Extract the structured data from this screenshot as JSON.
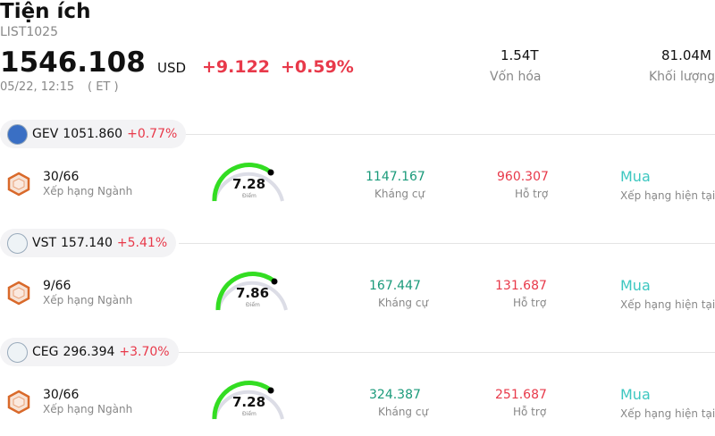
{
  "header": {
    "title": "Tiện ích",
    "code": "LIST1025",
    "price": "1546.108",
    "currency": "USD",
    "change": "+9.122",
    "change_pct": "+0.59%",
    "time": "05/22, 12:15",
    "timezone": "( ET )",
    "stats": [
      {
        "value": "1.54T",
        "label": "Vốn hóa"
      },
      {
        "value": "81.04M",
        "label": "Khối lượng"
      }
    ]
  },
  "items": [
    {
      "ticker": "GEV",
      "price": "1051.860",
      "change": "+0.77%",
      "rank": "30/66",
      "rank_label": "Xếp hạng Ngành",
      "score": "7.28",
      "score_label": "Điểm",
      "resistance": "1147.167",
      "resistance_label": "Kháng cự",
      "support": "960.307",
      "support_label": "Hỗ trợ",
      "rating": "Mua",
      "rating_label": "Xếp hạng hiện tại"
    },
    {
      "ticker": "VST",
      "price": "157.140",
      "change": "+5.41%",
      "rank": "9/66",
      "rank_label": "Xếp hạng Ngành",
      "score": "7.86",
      "score_label": "Điểm",
      "resistance": "167.447",
      "resistance_label": "Kháng cự",
      "support": "131.687",
      "support_label": "Hỗ trợ",
      "rating": "Mua",
      "rating_label": "Xếp hạng hiện tại"
    },
    {
      "ticker": "CEG",
      "price": "296.394",
      "change": "+3.70%",
      "rank": "30/66",
      "rank_label": "Xếp hạng Ngành",
      "score": "7.28",
      "score_label": "Điểm",
      "resistance": "324.387",
      "resistance_label": "Kháng cự",
      "support": "251.687",
      "support_label": "Hỗ trợ",
      "rating": "Mua",
      "rating_label": "Xếp hạng hiện tại"
    }
  ]
}
